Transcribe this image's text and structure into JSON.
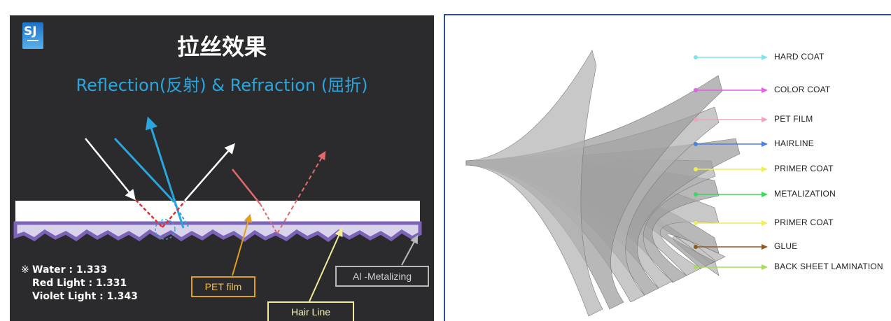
{
  "left": {
    "logo": "SJ",
    "title": "拉丝效果",
    "subtitle": "Reflection(反射) & Refraction (屈折)",
    "note_mark": "※",
    "refractive_indices": [
      "Water : 1.333",
      "Red Light : 1.331",
      "Violet Light : 1.343"
    ],
    "labels": {
      "pet_film": "PET film",
      "hair_line": "Hair Line",
      "al_metalizing": "Al -Metalizing"
    },
    "colors": {
      "background": "#2b2b2d",
      "title": "#ffffff",
      "subtitle": "#2aa6df",
      "white_ray": "#ffffff",
      "blue_ray": "#2aa6df",
      "red_ray": "#e26a6a",
      "metal_layer": "#7b63b8",
      "pet_box": "#e0a019",
      "hairline_box": "#f2ec9a"
    }
  },
  "right": {
    "layers": [
      {
        "name": "HARD COAT",
        "color": "#7fe3ea"
      },
      {
        "name": "COLOR COAT",
        "color": "#e25ee2"
      },
      {
        "name": "PET FILM",
        "color": "#eea2c4"
      },
      {
        "name": "HAIRLINE",
        "color": "#4a7fe0"
      },
      {
        "name": "PRIMER COAT",
        "color": "#eeee5a"
      },
      {
        "name": "METALIZATION",
        "color": "#3ed65e"
      },
      {
        "name": "PRIMER COAT",
        "color": "#eeee5a"
      },
      {
        "name": "GLUE",
        "color": "#8a5a24"
      },
      {
        "name": "BACK SHEET LAMINATION",
        "color": "#a6dc5a"
      }
    ]
  }
}
